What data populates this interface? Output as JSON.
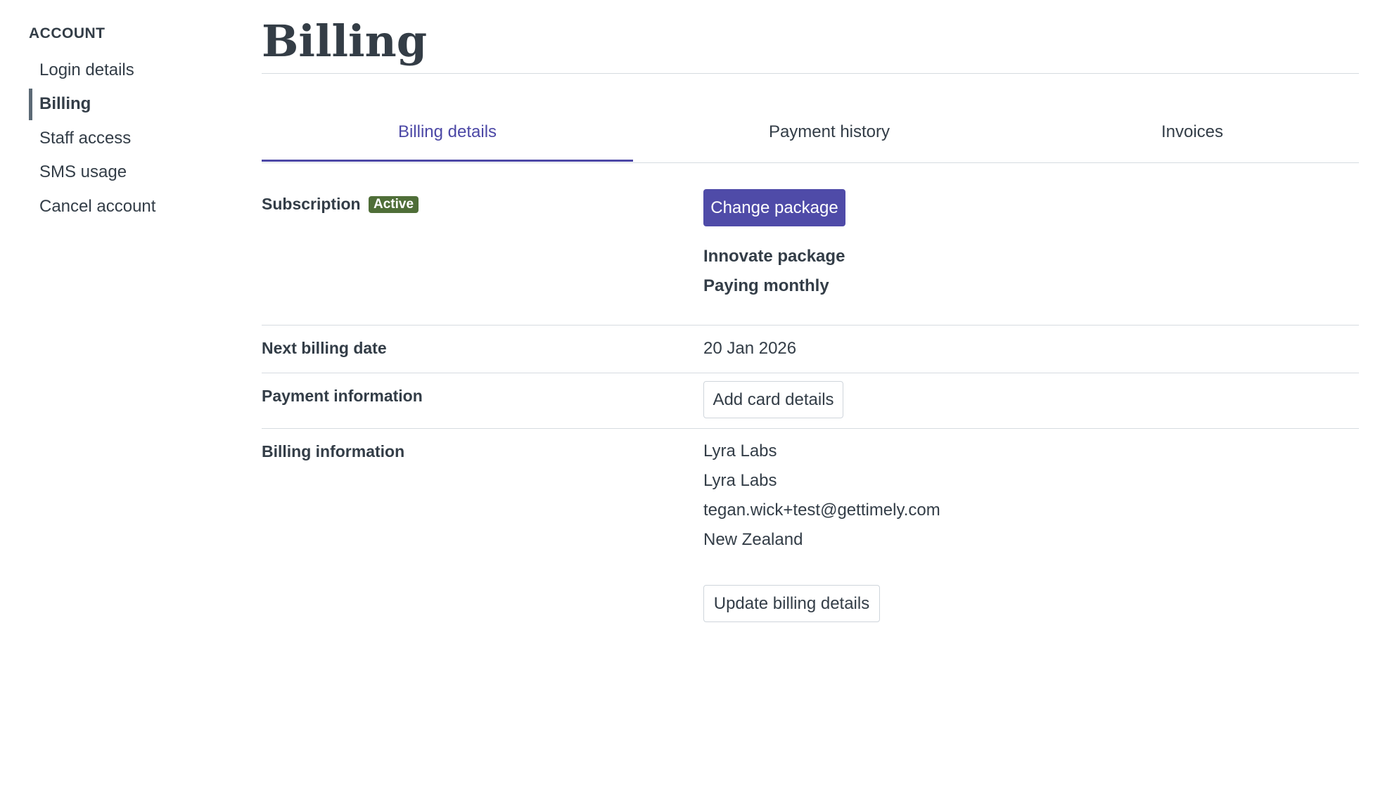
{
  "sidebar": {
    "heading": "ACCOUNT",
    "items": [
      {
        "label": "Login details",
        "active": false
      },
      {
        "label": "Billing",
        "active": true
      },
      {
        "label": "Staff access",
        "active": false
      },
      {
        "label": "SMS usage",
        "active": false
      },
      {
        "label": "Cancel account",
        "active": false
      }
    ]
  },
  "page": {
    "title": "Billing"
  },
  "tabs": [
    {
      "label": "Billing details",
      "active": true
    },
    {
      "label": "Payment history",
      "active": false
    },
    {
      "label": "Invoices",
      "active": false
    }
  ],
  "subscription": {
    "label": "Subscription",
    "status": "Active",
    "change_button": "Change package",
    "package": "Innovate package",
    "frequency": "Paying monthly"
  },
  "next_billing": {
    "label": "Next billing date",
    "value": "20 Jan 2026"
  },
  "payment_info": {
    "label": "Payment information",
    "button": "Add card details"
  },
  "billing_info": {
    "label": "Billing information",
    "lines": [
      "Lyra Labs",
      "Lyra Labs",
      "tegan.wick+test@gettimely.com",
      "New Zealand"
    ],
    "button": "Update billing details"
  },
  "colors": {
    "accent": "#4f4ba8",
    "active_badge": "#4f6e38",
    "text": "#333d47"
  }
}
